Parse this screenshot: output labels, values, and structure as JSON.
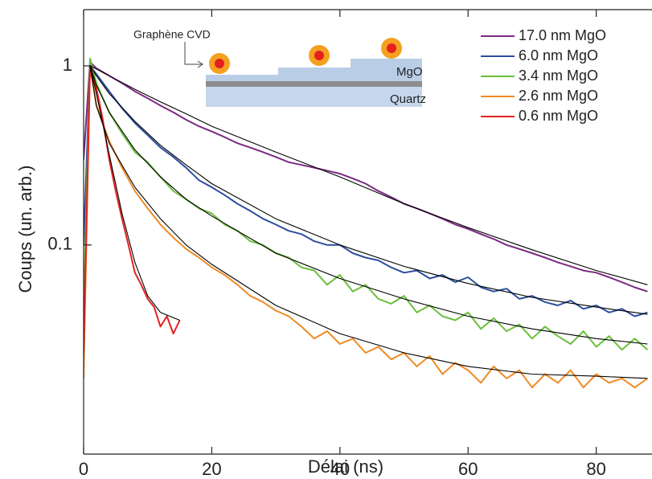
{
  "chart_data": {
    "type": "line",
    "log_y": true,
    "xlabel": "Délai (ns)",
    "ylabel": "Coups (un. arb.)",
    "xlim": [
      0,
      88.7
    ],
    "xticks": [
      0,
      20,
      40,
      60,
      80
    ],
    "ylim": [
      0.0068,
      2.06
    ],
    "yticks": [
      1,
      0.1
    ],
    "series": [
      {
        "name": "17.0 nm MgO",
        "color": "#7b2a83",
        "x": [
          0,
          1,
          2,
          4,
          6,
          8,
          10,
          12,
          14,
          16,
          18,
          20,
          22,
          24,
          26,
          28,
          30,
          32,
          34,
          36,
          38,
          40,
          42,
          44,
          46,
          48,
          50,
          52,
          54,
          56,
          58,
          60,
          62,
          64,
          66,
          68,
          70,
          72,
          74,
          76,
          78,
          80,
          82,
          84,
          86,
          88
        ],
        "values": [
          0.3,
          1.05,
          0.97,
          0.88,
          0.8,
          0.72,
          0.66,
          0.6,
          0.55,
          0.5,
          0.46,
          0.43,
          0.4,
          0.37,
          0.35,
          0.33,
          0.31,
          0.29,
          0.28,
          0.27,
          0.26,
          0.25,
          0.235,
          0.22,
          0.2,
          0.185,
          0.17,
          0.16,
          0.15,
          0.14,
          0.13,
          0.123,
          0.115,
          0.108,
          0.1,
          0.095,
          0.09,
          0.085,
          0.08,
          0.076,
          0.072,
          0.07,
          0.066,
          0.062,
          0.058,
          0.055
        ]
      },
      {
        "name": "6.0 nm MgO",
        "color": "#2c4f9e",
        "x": [
          0,
          1,
          2,
          4,
          6,
          8,
          10,
          12,
          14,
          16,
          18,
          20,
          22,
          24,
          26,
          28,
          30,
          32,
          34,
          36,
          38,
          40,
          42,
          44,
          46,
          48,
          50,
          52,
          54,
          56,
          58,
          60,
          62,
          64,
          66,
          68,
          70,
          72,
          74,
          76,
          78,
          80,
          82,
          84,
          86,
          88
        ],
        "values": [
          0.1,
          1.0,
          0.9,
          0.72,
          0.58,
          0.48,
          0.41,
          0.35,
          0.31,
          0.27,
          0.23,
          0.21,
          0.19,
          0.17,
          0.155,
          0.14,
          0.13,
          0.12,
          0.115,
          0.105,
          0.1,
          0.1,
          0.09,
          0.085,
          0.082,
          0.075,
          0.07,
          0.072,
          0.065,
          0.068,
          0.062,
          0.066,
          0.058,
          0.055,
          0.057,
          0.05,
          0.052,
          0.048,
          0.046,
          0.049,
          0.044,
          0.046,
          0.042,
          0.044,
          0.04,
          0.042
        ]
      },
      {
        "name": "3.4 nm MgO",
        "color": "#6cbf3c",
        "x": [
          0,
          1,
          2,
          4,
          6,
          8,
          10,
          12,
          14,
          16,
          18,
          20,
          22,
          24,
          26,
          28,
          30,
          32,
          34,
          36,
          38,
          40,
          42,
          44,
          46,
          48,
          50,
          52,
          54,
          56,
          58,
          60,
          62,
          64,
          66,
          68,
          70,
          72,
          74,
          76,
          78,
          80,
          82,
          84,
          86,
          88
        ],
        "values": [
          0.04,
          1.1,
          0.8,
          0.55,
          0.42,
          0.33,
          0.29,
          0.24,
          0.2,
          0.18,
          0.16,
          0.15,
          0.13,
          0.12,
          0.105,
          0.1,
          0.09,
          0.085,
          0.075,
          0.072,
          0.06,
          0.068,
          0.055,
          0.06,
          0.05,
          0.047,
          0.052,
          0.042,
          0.046,
          0.04,
          0.038,
          0.042,
          0.034,
          0.039,
          0.033,
          0.036,
          0.03,
          0.035,
          0.031,
          0.028,
          0.033,
          0.027,
          0.031,
          0.026,
          0.03,
          0.026
        ]
      },
      {
        "name": "2.6 nm MgO",
        "color": "#f08a24",
        "x": [
          0,
          1,
          2,
          4,
          6,
          8,
          10,
          12,
          14,
          16,
          18,
          20,
          22,
          24,
          26,
          28,
          30,
          32,
          34,
          36,
          38,
          40,
          42,
          44,
          46,
          48,
          50,
          52,
          54,
          56,
          58,
          60,
          62,
          64,
          66,
          68,
          70,
          72,
          74,
          76,
          78,
          80,
          82,
          84,
          86,
          88
        ],
        "values": [
          0.018,
          1.0,
          0.6,
          0.38,
          0.27,
          0.2,
          0.16,
          0.13,
          0.11,
          0.095,
          0.085,
          0.075,
          0.068,
          0.06,
          0.052,
          0.048,
          0.043,
          0.04,
          0.035,
          0.03,
          0.033,
          0.028,
          0.03,
          0.025,
          0.027,
          0.023,
          0.025,
          0.021,
          0.024,
          0.019,
          0.022,
          0.02,
          0.017,
          0.021,
          0.018,
          0.02,
          0.016,
          0.019,
          0.017,
          0.02,
          0.016,
          0.019,
          0.017,
          0.018,
          0.016,
          0.018
        ]
      },
      {
        "name": "0.6 nm MgO",
        "color": "#e3211f",
        "x": [
          0,
          1,
          2,
          3,
          4,
          5,
          6,
          7,
          8,
          9,
          10,
          11,
          12,
          13,
          14,
          15
        ],
        "values": [
          0.025,
          1.0,
          0.75,
          0.5,
          0.3,
          0.2,
          0.14,
          0.1,
          0.07,
          0.06,
          0.05,
          0.045,
          0.035,
          0.04,
          0.032,
          0.038
        ]
      }
    ],
    "fits": [
      {
        "color": "#000000",
        "x": [
          1,
          2,
          4,
          8,
          12,
          16,
          20,
          30,
          40,
          50,
          60,
          70,
          80,
          88
        ],
        "values": [
          1.0,
          0.96,
          0.88,
          0.74,
          0.63,
          0.54,
          0.46,
          0.33,
          0.24,
          0.17,
          0.125,
          0.094,
          0.072,
          0.06
        ]
      },
      {
        "color": "#000000",
        "x": [
          1,
          2,
          4,
          8,
          12,
          16,
          20,
          30,
          40,
          50,
          60,
          70,
          80,
          88
        ],
        "values": [
          1.0,
          0.88,
          0.7,
          0.49,
          0.36,
          0.28,
          0.22,
          0.14,
          0.1,
          0.076,
          0.061,
          0.051,
          0.045,
          0.041
        ]
      },
      {
        "color": "#000000",
        "x": [
          1,
          2,
          4,
          8,
          12,
          16,
          20,
          30,
          40,
          50,
          60,
          70,
          80,
          88
        ],
        "values": [
          1.0,
          0.78,
          0.55,
          0.34,
          0.24,
          0.18,
          0.145,
          0.09,
          0.065,
          0.05,
          0.04,
          0.034,
          0.03,
          0.028
        ]
      },
      {
        "color": "#000000",
        "x": [
          1,
          2,
          4,
          8,
          12,
          16,
          20,
          30,
          40,
          50,
          60,
          70,
          80,
          88
        ],
        "values": [
          1.0,
          0.6,
          0.37,
          0.21,
          0.14,
          0.1,
          0.078,
          0.046,
          0.032,
          0.025,
          0.021,
          0.019,
          0.0185,
          0.018
        ]
      },
      {
        "color": "#000000",
        "x": [
          1,
          2,
          4,
          6,
          8,
          10,
          12,
          15
        ],
        "values": [
          1.0,
          0.7,
          0.32,
          0.15,
          0.08,
          0.052,
          0.042,
          0.038
        ]
      }
    ],
    "inset": {
      "graphene_label": "Graphène CVD",
      "mgo_label": "MgO",
      "quartz_label": "Quartz"
    }
  }
}
